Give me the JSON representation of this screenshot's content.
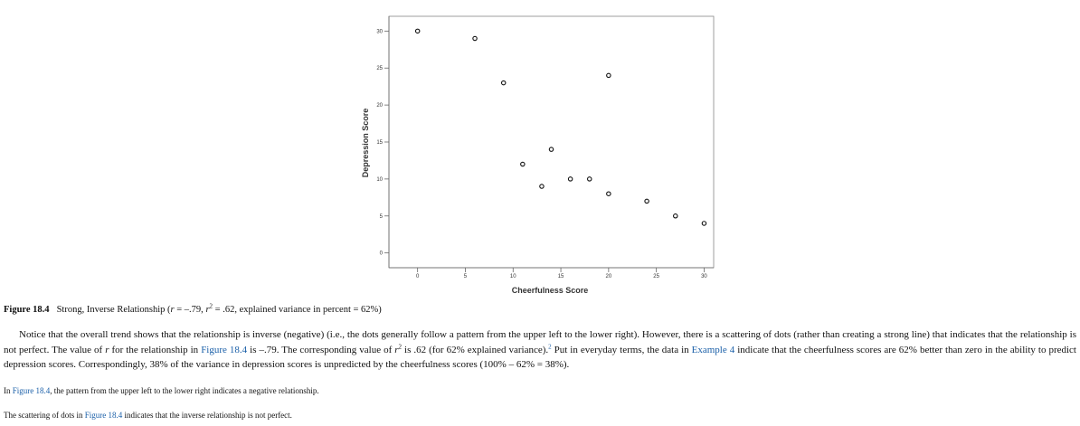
{
  "chart_data": {
    "type": "scatter",
    "xlabel": "Cheerfulness Score",
    "ylabel": "Depression Score",
    "xlim": [
      -3,
      31
    ],
    "ylim": [
      -2,
      32
    ],
    "xticks": [
      0,
      5,
      10,
      15,
      20,
      25,
      30
    ],
    "yticks": [
      0,
      5,
      10,
      15,
      20,
      25,
      30
    ],
    "grid": false,
    "points": [
      {
        "x": 0,
        "y": 30
      },
      {
        "x": 6,
        "y": 29
      },
      {
        "x": 9,
        "y": 23
      },
      {
        "x": 11,
        "y": 12
      },
      {
        "x": 13,
        "y": 9
      },
      {
        "x": 14,
        "y": 14
      },
      {
        "x": 16,
        "y": 10
      },
      {
        "x": 18,
        "y": 10
      },
      {
        "x": 20,
        "y": 24
      },
      {
        "x": 20,
        "y": 8
      },
      {
        "x": 24,
        "y": 7
      },
      {
        "x": 27,
        "y": 5
      },
      {
        "x": 30,
        "y": 4
      }
    ]
  },
  "caption": {
    "label": "Figure 18.4",
    "prefix": "Strong, Inverse Relationship (",
    "r_var": "r",
    "r_value": " = –.79, ",
    "r2_var": "r",
    "r2_sup": "2",
    "r2_value": " = .62, explained variance in percent = 62%)"
  },
  "paragraph": {
    "part1": "Notice that the overall trend shows that the relationship is inverse (negative) (i.e., the dots generally follow a pattern from the upper left to the lower right). However, there is a scattering of dots (rather than creating a strong line) that indicates that the relationship is not perfect. The value of ",
    "r_var": "r",
    "part2": " for the relationship in ",
    "link1": "Figure 18.4",
    "part3": " is –.79. The corresponding value of ",
    "r2_var": "r",
    "r2_sup": "2",
    "part4": " is .62 (for 62% explained variance).",
    "footnote": "2",
    "part5": " Put in everyday terms, the data in ",
    "link2": "Example 4",
    "part6": " indicate that the cheerfulness scores are 62% better than zero in the ability to predict depression scores. Correspondingly, 38% of the variance in depression scores is unpredicted by the cheerfulness scores (100% – 62% = 38%)."
  },
  "notes": [
    {
      "prefix": "In ",
      "link": "Figure 18.4",
      "suffix": ", the pattern from the upper left to the lower right indicates a negative relationship."
    },
    {
      "prefix": "The scattering of dots in ",
      "link": "Figure 18.4",
      "suffix": " indicates that the inverse relationship is not perfect."
    }
  ]
}
